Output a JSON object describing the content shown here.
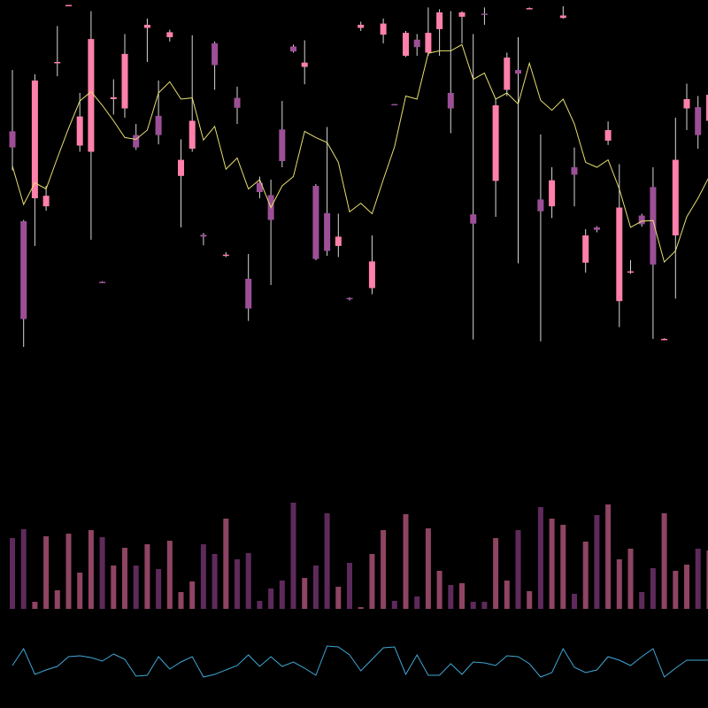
{
  "chart_data": [
    {
      "type": "candlestick",
      "up_color": "#ff80aa",
      "down_color": "#9c4f96",
      "ylim": [
        0,
        800
      ],
      "open": [
        588,
        443,
        480,
        467,
        699,
        791,
        565,
        555,
        345,
        640,
        625,
        582,
        755,
        613,
        740,
        516,
        560,
        421,
        730,
        387,
        642,
        350,
        505,
        485,
        591,
        725,
        692,
        500,
        456,
        403,
        319,
        755,
        335,
        744,
        632,
        710,
        736,
        715,
        753,
        650,
        773,
        454,
        778,
        508,
        655,
        687,
        786,
        478,
        467,
        771,
        530,
        376,
        433,
        573,
        314,
        360,
        452,
        498,
        252,
        420,
        625,
        627,
        605
      ],
      "high": [
        687,
        445,
        680,
        500,
        758,
        792,
        650,
        782,
        346,
        672,
        745,
        600,
        770,
        670,
        752,
        575,
        743,
        424,
        733,
        393,
        660,
        390,
        515,
        510,
        637,
        728,
        735,
        503,
        595,
        455,
        320,
        765,
        420,
        770,
        632,
        750,
        745,
        788,
        785,
        782,
        782,
        745,
        788,
        640,
        715,
        740,
        788,
        583,
        530,
        790,
        562,
        430,
        435,
        604,
        535,
        380,
        455,
        530,
        254,
        610,
        665,
        645,
        650
      ],
      "low": [
        525,
        240,
        403,
        460,
        677,
        790,
        555,
        413,
        344,
        615,
        610,
        558,
        700,
        567,
        733,
        433,
        555,
        404,
        655,
        385,
        600,
        282,
        480,
        340,
        530,
        715,
        664,
        380,
        387,
        385,
        315,
        750,
        325,
        730,
        630,
        708,
        710,
        710,
        710,
        585,
        730,
        252,
        760,
        450,
        645,
        375,
        785,
        249,
        448,
        770,
        467,
        360,
        425,
        566,
        272,
        358,
        434,
        253,
        251,
        318,
        590,
        560,
        600
      ],
      "close": [
        562,
        285,
        670,
        484,
        700,
        792,
        612,
        737,
        344,
        643,
        713,
        562,
        760,
        582,
        748,
        542,
        605,
        418,
        695,
        389,
        626,
        302,
        490,
        445,
        540,
        717,
        699,
        382,
        395,
        418,
        317,
        760,
        378,
        762,
        630,
        747,
        724,
        747,
        780,
        625,
        780,
        439,
        776,
        630,
        707,
        681,
        787,
        459,
        509,
        775,
        518,
        420,
        429,
        590,
        465,
        362,
        438,
        373,
        253,
        542,
        640,
        582,
        647
      ],
      "line": {
        "color": "#e8e070",
        "values": [
          532,
          470,
          505,
          495,
          545,
          593,
          637,
          652,
          630,
          605,
          578,
          575,
          590,
          650,
          668,
          640,
          642,
          574,
          596,
          527,
          545,
          495,
          510,
          465,
          500,
          515,
          588,
          578,
          570,
          538,
          458,
          472,
          455,
          510,
          563,
          645,
          640,
          714,
          718,
          718,
          728,
          672,
          682,
          640,
          650,
          632,
          698,
          638,
          622,
          640,
          600,
          538,
          530,
          542,
          495,
          433,
          443,
          444,
          377,
          395,
          450,
          480,
          515
        ]
      }
    },
    {
      "type": "bar",
      "up_color": "#8e4462",
      "down_color": "#5e2a5b",
      "ylim": [
        0,
        120
      ],
      "values": [
        80,
        90,
        8,
        82,
        21,
        85,
        41,
        89,
        81,
        49,
        69,
        49,
        73,
        45,
        77,
        19,
        31,
        73,
        62,
        102,
        56,
        63,
        9,
        23,
        32,
        120,
        35,
        49,
        108,
        25,
        52,
        2,
        62,
        89,
        9,
        107,
        14,
        91,
        43,
        27,
        29,
        8,
        8,
        80,
        32,
        89,
        20,
        115,
        102,
        95,
        17,
        76,
        106,
        118,
        56,
        68,
        19,
        46,
        108,
        43,
        50,
        68,
        66
      ]
    },
    {
      "type": "line",
      "color": "#3fa7d6",
      "ylim": [
        0,
        100
      ],
      "values": [
        48,
        67,
        38,
        43,
        47,
        58,
        59,
        57,
        53,
        61,
        55,
        36,
        37,
        58,
        44,
        52,
        58,
        35,
        38,
        43,
        48,
        60,
        47,
        58,
        47,
        52,
        45,
        37,
        70,
        69,
        60,
        42,
        55,
        68,
        69,
        38,
        60,
        37,
        37,
        50,
        38,
        52,
        51,
        48,
        59,
        58,
        50,
        35,
        40,
        67,
        46,
        40,
        43,
        58,
        54,
        48,
        58,
        67,
        35,
        45,
        54,
        54,
        54
      ]
    }
  ]
}
